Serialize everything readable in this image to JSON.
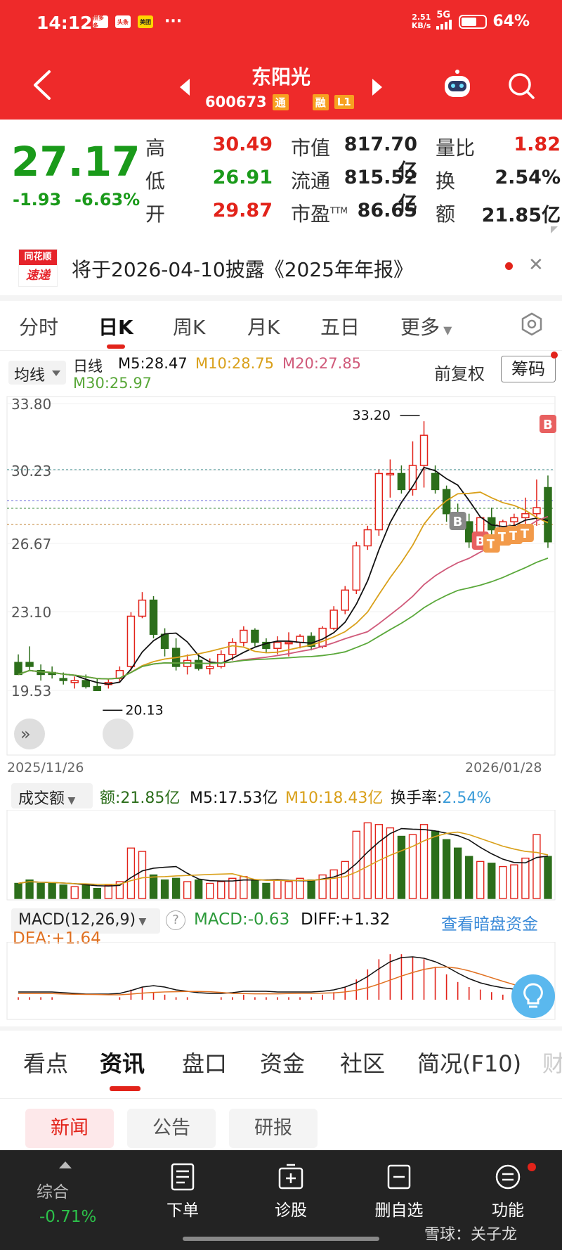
{
  "status_bar": {
    "time": "14:12",
    "net_speed_value": "2.51",
    "net_speed_unit": "KB/s",
    "network": "5G",
    "battery_pct": "64%",
    "battery_level": 0.64,
    "apps": [
      "拼多多",
      "头条",
      "美团"
    ],
    "more": "···"
  },
  "header": {
    "stock_name": "东阳光",
    "stock_code": "600673",
    "tags": [
      "通",
      "融",
      "L1"
    ]
  },
  "quote": {
    "price": "27.17",
    "change": "-1.93",
    "change_pct": "-6.63%",
    "rows": [
      {
        "label1": "高",
        "val1": "30.49",
        "label2": "市值",
        "val2": "817.70亿",
        "label3": "量比",
        "val3": "1.82"
      },
      {
        "label1": "低",
        "val1": "26.91",
        "label2": "流通",
        "val2": "815.52亿",
        "label3": "换",
        "val3": "2.54%"
      },
      {
        "label1": "开",
        "val1": "29.87",
        "label2": "市盈",
        "label2_sup": "TTM",
        "val2": "86.65",
        "label3": "额",
        "val3": "21.85亿"
      }
    ]
  },
  "notice": {
    "logo_top": "同花顺",
    "logo_bottom": "速递",
    "text": "将于2026-04-10披露《2025年年报》"
  },
  "period_tabs": [
    "分时",
    "日K",
    "周K",
    "月K",
    "五日",
    "更多"
  ],
  "period_active": "日K",
  "ma_legend": {
    "selector": "均线",
    "line_label": "日线",
    "m5": "M5:28.47",
    "m10": "M10:28.75",
    "m20": "M20:27.85",
    "m30": "M30:25.97",
    "adjust": "前复权",
    "chips": "筹码"
  },
  "colors": {
    "up": "#e2231a",
    "down": "#2c6e1b",
    "m5": "#111111",
    "m10": "#d9a01a",
    "m20": "#d05a7a",
    "m30": "#5aa83a",
    "accent": "#ee2a2a"
  },
  "kline": {
    "y_ticks": [
      "33.80",
      "30.23",
      "26.67",
      "23.10",
      "19.53"
    ],
    "date_start": "2025/11/26",
    "date_end": "2026/01/28",
    "high_annotation": "33.20",
    "low_annotation": "20.13",
    "markers": [
      "B",
      "B",
      "T",
      "T",
      "T",
      "T",
      "B"
    ]
  },
  "volume_legend": {
    "selector": "成交额",
    "amount": "额:21.85亿",
    "m5": "M5:17.53亿",
    "m10": "M10:18.43亿",
    "turnover_label": "换手率:",
    "turnover_val": "2.54%"
  },
  "macd_legend": {
    "selector": "MACD(12,26,9)",
    "help": "?",
    "macd": "MACD:-0.63",
    "diff": "DIFF:+1.32",
    "dea": "DEA:+1.64",
    "link": "查看暗盘资金"
  },
  "bottom_tabs": [
    "看点",
    "资讯",
    "盘口",
    "资金",
    "社区",
    "简况(F10)",
    "财"
  ],
  "bottom_tab_active": "资讯",
  "sub_tabs": [
    "新闻",
    "公告",
    "研报"
  ],
  "sub_tab_active": "新闻",
  "nav": {
    "index_label": "综合",
    "index_value": "-0.71%",
    "items": [
      "下单",
      "诊股",
      "删自选",
      "功能"
    ]
  },
  "watermark": "雪球：关子龙"
}
